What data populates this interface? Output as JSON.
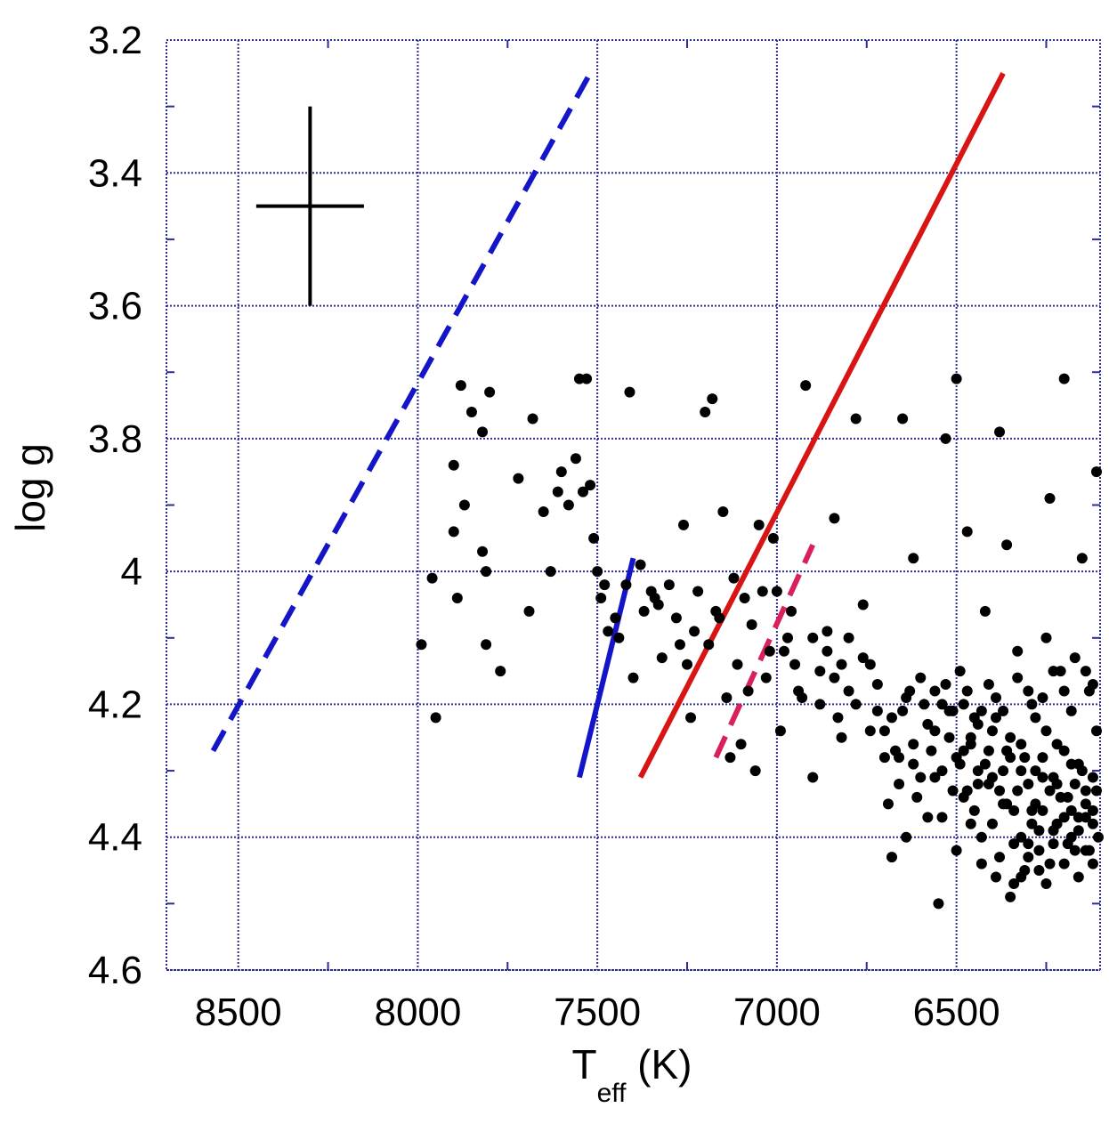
{
  "chart_data": {
    "type": "scatter",
    "title": "",
    "xlabel": {
      "main": "T",
      "sub": "eff",
      "suffix": " (K)"
    },
    "ylabel": "log g",
    "xlim": [
      8700,
      6100
    ],
    "ylim": [
      3.2,
      4.6
    ],
    "x_reversed": true,
    "y_reversed": true,
    "x_ticks": [
      8500,
      8000,
      7500,
      7000,
      6500
    ],
    "x_tick_labels": [
      "8500",
      "8000",
      "7500",
      "7000",
      "6500"
    ],
    "y_ticks": [
      3.2,
      3.4,
      3.6,
      3.8,
      4.0,
      4.2,
      4.4,
      4.6
    ],
    "y_tick_labels": [
      "3.2",
      "3.4",
      "3.6",
      "3.8",
      "4",
      "4.2",
      "4.4",
      "4.6"
    ],
    "x_minor_ticks": [
      8250,
      7750,
      7250,
      6750,
      6250
    ],
    "y_minor_ticks": [
      3.3,
      3.5,
      3.7,
      3.9,
      4.1,
      4.3,
      4.5
    ],
    "grid": true,
    "colors": {
      "grid": "#2b2b9a",
      "points": "#000000"
    },
    "error_bar": {
      "x": 8300,
      "y": 3.45,
      "xerr": 150,
      "yerr": 0.15,
      "color": "#000000"
    },
    "lines": [
      {
        "style": "dashed",
        "color": "#1414c8",
        "x": [
          8570,
          7520
        ],
        "y": [
          4.27,
          3.25
        ]
      },
      {
        "style": "solid",
        "color": "#1414c8",
        "x": [
          7550,
          7400
        ],
        "y": [
          4.31,
          3.98
        ]
      },
      {
        "style": "solid",
        "color": "#d81414",
        "x": [
          7380,
          6370
        ],
        "y": [
          4.31,
          3.25
        ]
      },
      {
        "style": "dashed",
        "color": "#d8205a",
        "x": [
          7170,
          6900
        ],
        "y": [
          4.28,
          3.96
        ]
      }
    ],
    "points": [
      [
        7990,
        4.11
      ],
      [
        7960,
        4.01
      ],
      [
        7950,
        4.22
      ],
      [
        7900,
        3.84
      ],
      [
        7900,
        3.94
      ],
      [
        7890,
        4.04
      ],
      [
        7880,
        3.72
      ],
      [
        7870,
        3.9
      ],
      [
        7850,
        3.76
      ],
      [
        7820,
        3.79
      ],
      [
        7820,
        3.97
      ],
      [
        7810,
        4.0
      ],
      [
        7810,
        4.11
      ],
      [
        7800,
        3.73
      ],
      [
        7770,
        4.15
      ],
      [
        7720,
        3.86
      ],
      [
        7690,
        4.06
      ],
      [
        7680,
        3.77
      ],
      [
        7650,
        3.91
      ],
      [
        7630,
        4.0
      ],
      [
        7610,
        3.88
      ],
      [
        7600,
        3.85
      ],
      [
        7580,
        3.9
      ],
      [
        7560,
        3.83
      ],
      [
        7550,
        3.71
      ],
      [
        7540,
        3.88
      ],
      [
        7530,
        3.71
      ],
      [
        7520,
        3.87
      ],
      [
        7510,
        3.95
      ],
      [
        7500,
        4.0
      ],
      [
        7490,
        4.04
      ],
      [
        7480,
        4.02
      ],
      [
        7470,
        4.09
      ],
      [
        7450,
        4.07
      ],
      [
        7420,
        4.02
      ],
      [
        7410,
        3.73
      ],
      [
        7400,
        4.16
      ],
      [
        7380,
        3.99
      ],
      [
        7350,
        4.03
      ],
      [
        7330,
        4.05
      ],
      [
        7320,
        4.13
      ],
      [
        7300,
        4.02
      ],
      [
        7280,
        4.07
      ],
      [
        7260,
        3.93
      ],
      [
        7250,
        4.14
      ],
      [
        7240,
        4.22
      ],
      [
        7220,
        4.03
      ],
      [
        7200,
        3.76
      ],
      [
        7190,
        4.11
      ],
      [
        7180,
        3.74
      ],
      [
        7170,
        4.06
      ],
      [
        7150,
        3.91
      ],
      [
        7140,
        4.19
      ],
      [
        7130,
        4.28
      ],
      [
        7120,
        4.01
      ],
      [
        7110,
        4.14
      ],
      [
        7100,
        4.26
      ],
      [
        7080,
        4.18
      ],
      [
        7070,
        4.08
      ],
      [
        7060,
        4.3
      ],
      [
        7050,
        3.93
      ],
      [
        7040,
        4.03
      ],
      [
        7030,
        4.16
      ],
      [
        7010,
        3.95
      ],
      [
        7000,
        4.03
      ],
      [
        6990,
        4.24
      ],
      [
        6980,
        4.12
      ],
      [
        6960,
        4.06
      ],
      [
        6940,
        4.18
      ],
      [
        6920,
        3.72
      ],
      [
        6900,
        4.31
      ],
      [
        6880,
        4.2
      ],
      [
        6860,
        4.09
      ],
      [
        6840,
        3.92
      ],
      [
        6830,
        4.22
      ],
      [
        6820,
        4.25
      ],
      [
        6800,
        4.18
      ],
      [
        6780,
        3.77
      ],
      [
        6760,
        4.05
      ],
      [
        6740,
        4.14
      ],
      [
        6720,
        4.21
      ],
      [
        6700,
        4.28
      ],
      [
        6680,
        4.43
      ],
      [
        6660,
        4.32
      ],
      [
        6650,
        3.77
      ],
      [
        6630,
        4.18
      ],
      [
        6620,
        3.98
      ],
      [
        6600,
        4.16
      ],
      [
        6580,
        4.37
      ],
      [
        6560,
        4.24
      ],
      [
        6550,
        4.5
      ],
      [
        6540,
        4.2
      ],
      [
        6530,
        3.8
      ],
      [
        6510,
        4.33
      ],
      [
        6500,
        3.71
      ],
      [
        6490,
        4.15
      ],
      [
        6480,
        4.27
      ],
      [
        6470,
        3.94
      ],
      [
        6460,
        4.38
      ],
      [
        6440,
        4.23
      ],
      [
        6430,
        4.44
      ],
      [
        6420,
        4.06
      ],
      [
        6400,
        4.31
      ],
      [
        6390,
        4.19
      ],
      [
        6380,
        3.79
      ],
      [
        6370,
        4.35
      ],
      [
        6360,
        3.96
      ],
      [
        6350,
        4.25
      ],
      [
        6340,
        4.47
      ],
      [
        6330,
        4.12
      ],
      [
        6320,
        4.4
      ],
      [
        6310,
        4.28
      ],
      [
        6300,
        4.18
      ],
      [
        6290,
        4.36
      ],
      [
        6280,
        4.22
      ],
      [
        6270,
        4.45
      ],
      [
        6260,
        4.31
      ],
      [
        6250,
        4.1
      ],
      [
        6240,
        3.89
      ],
      [
        6230,
        4.39
      ],
      [
        6220,
        4.26
      ],
      [
        6210,
        4.15
      ],
      [
        6200,
        3.71
      ],
      [
        6190,
        4.34
      ],
      [
        6180,
        4.21
      ],
      [
        6170,
        4.42
      ],
      [
        6160,
        4.29
      ],
      [
        6150,
        3.98
      ],
      [
        6140,
        4.37
      ],
      [
        6130,
        4.18
      ],
      [
        6120,
        4.31
      ],
      [
        6110,
        3.85
      ],
      [
        6110,
        4.24
      ],
      [
        6105,
        4.4
      ],
      [
        6720,
        4.17
      ],
      [
        6700,
        4.24
      ],
      [
        6690,
        4.35
      ],
      [
        6670,
        4.27
      ],
      [
        6650,
        4.21
      ],
      [
        6640,
        4.4
      ],
      [
        6620,
        4.29
      ],
      [
        6610,
        4.34
      ],
      [
        6590,
        4.2
      ],
      [
        6570,
        4.27
      ],
      [
        6560,
        4.31
      ],
      [
        6540,
        4.37
      ],
      [
        6520,
        4.25
      ],
      [
        6500,
        4.42
      ],
      [
        6490,
        4.29
      ],
      [
        6480,
        4.2
      ],
      [
        6470,
        4.33
      ],
      [
        6460,
        4.26
      ],
      [
        6450,
        4.36
      ],
      [
        6440,
        4.3
      ],
      [
        6430,
        4.4
      ],
      [
        6410,
        4.27
      ],
      [
        6400,
        4.38
      ],
      [
        6390,
        4.22
      ],
      [
        6380,
        4.43
      ],
      [
        6370,
        4.3
      ],
      [
        6360,
        4.35
      ],
      [
        6350,
        4.28
      ],
      [
        6340,
        4.41
      ],
      [
        6330,
        4.33
      ],
      [
        6320,
        4.26
      ],
      [
        6310,
        4.45
      ],
      [
        6300,
        4.32
      ],
      [
        6290,
        4.38
      ],
      [
        6280,
        4.3
      ],
      [
        6270,
        4.42
      ],
      [
        6260,
        4.36
      ],
      [
        6250,
        4.24
      ],
      [
        6240,
        4.33
      ],
      [
        6230,
        4.31
      ],
      [
        6220,
        4.38
      ],
      [
        6210,
        4.34
      ],
      [
        6200,
        4.27
      ],
      [
        6190,
        4.41
      ],
      [
        6180,
        4.36
      ],
      [
        6170,
        4.32
      ],
      [
        6160,
        4.39
      ],
      [
        6150,
        4.3
      ],
      [
        6140,
        4.35
      ],
      [
        6130,
        4.42
      ],
      [
        6120,
        4.38
      ],
      [
        6110,
        4.33
      ],
      [
        6680,
        4.22
      ],
      [
        6660,
        4.28
      ],
      [
        6640,
        4.19
      ],
      [
        6620,
        4.26
      ],
      [
        6600,
        4.31
      ],
      [
        6580,
        4.23
      ],
      [
        6560,
        4.18
      ],
      [
        6540,
        4.3
      ],
      [
        6520,
        4.21
      ],
      [
        6500,
        4.28
      ],
      [
        6480,
        4.34
      ],
      [
        6460,
        4.25
      ],
      [
        6440,
        4.32
      ],
      [
        6420,
        4.29
      ],
      [
        6400,
        4.24
      ],
      [
        6380,
        4.33
      ],
      [
        6360,
        4.27
      ],
      [
        6340,
        4.36
      ],
      [
        6320,
        4.3
      ],
      [
        6300,
        4.41
      ],
      [
        6280,
        4.35
      ],
      [
        6260,
        4.28
      ],
      [
        6240,
        4.44
      ],
      [
        6220,
        4.32
      ],
      [
        6200,
        4.37
      ],
      [
        6180,
        4.29
      ],
      [
        6160,
        4.46
      ],
      [
        6140,
        4.33
      ],
      [
        6120,
        4.36
      ],
      [
        6900,
        4.1
      ],
      [
        6880,
        4.15
      ],
      [
        6860,
        4.12
      ],
      [
        6840,
        4.16
      ],
      [
        6820,
        4.14
      ],
      [
        6800,
        4.1
      ],
      [
        6780,
        4.2
      ],
      [
        6760,
        4.13
      ],
      [
        6740,
        4.24
      ],
      [
        6950,
        4.14
      ],
      [
        6930,
        4.19
      ],
      [
        6970,
        4.1
      ],
      [
        7020,
        4.12
      ],
      [
        7090,
        4.04
      ],
      [
        7160,
        4.07
      ],
      [
        7230,
        4.09
      ],
      [
        7270,
        4.11
      ],
      [
        7340,
        4.04
      ],
      [
        7370,
        4.06
      ],
      [
        7440,
        4.1
      ],
      [
        6430,
        4.21
      ],
      [
        6410,
        4.32
      ],
      [
        6390,
        4.46
      ],
      [
        6350,
        4.49
      ],
      [
        6320,
        4.46
      ],
      [
        6300,
        4.43
      ],
      [
        6270,
        4.39
      ],
      [
        6250,
        4.47
      ],
      [
        6230,
        4.41
      ],
      [
        6200,
        4.44
      ],
      [
        6180,
        4.4
      ],
      [
        6160,
        4.37
      ],
      [
        6140,
        4.42
      ],
      [
        6120,
        4.44
      ],
      [
        6530,
        4.17
      ],
      [
        6510,
        4.21
      ],
      [
        6470,
        4.18
      ],
      [
        6450,
        4.22
      ],
      [
        6410,
        4.17
      ],
      [
        6370,
        4.21
      ],
      [
        6330,
        4.16
      ],
      [
        6290,
        4.2
      ],
      [
        6260,
        4.19
      ],
      [
        6230,
        4.15
      ],
      [
        6200,
        4.18
      ],
      [
        6170,
        4.13
      ],
      [
        6140,
        4.15
      ],
      [
        6120,
        4.17
      ]
    ]
  }
}
